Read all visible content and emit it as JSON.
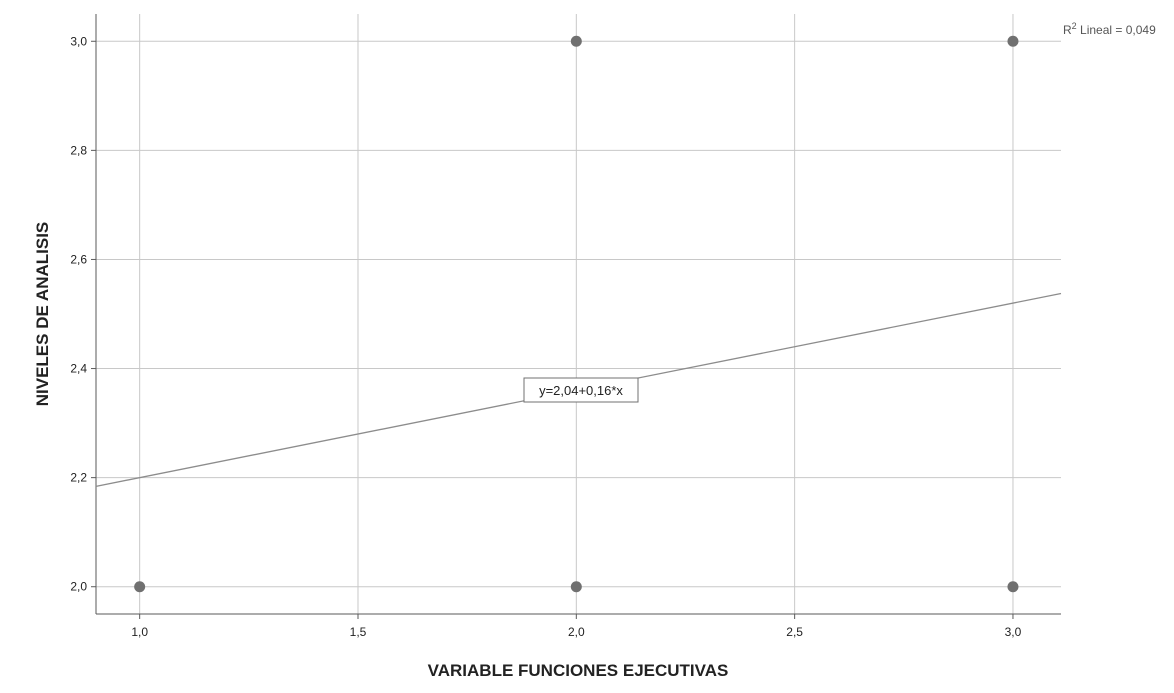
{
  "chart_data": {
    "type": "scatter",
    "title": "",
    "xlabel": "VARIABLE FUNCIONES EJECUTIVAS",
    "ylabel": "NIVELES DE ANALISIS",
    "xlim": [
      0.9,
      3.11
    ],
    "ylim": [
      1.95,
      3.05
    ],
    "x_ticks": [
      1.0,
      1.5,
      2.0,
      2.5,
      3.0
    ],
    "x_tick_labels": [
      "1,0",
      "1,5",
      "2,0",
      "2,5",
      "3,0"
    ],
    "y_ticks": [
      2.0,
      2.2,
      2.4,
      2.6,
      2.8,
      3.0
    ],
    "y_tick_labels": [
      "2,0",
      "2,2",
      "2,4",
      "2,6",
      "2,8",
      "3,0"
    ],
    "grid": true,
    "points": [
      {
        "x": 1.0,
        "y": 2.0
      },
      {
        "x": 2.0,
        "y": 2.0
      },
      {
        "x": 3.0,
        "y": 2.0
      },
      {
        "x": 2.0,
        "y": 3.0
      },
      {
        "x": 3.0,
        "y": 3.0
      }
    ],
    "fit_line": {
      "intercept": 2.04,
      "slope": 0.16
    },
    "fit_equation_label": "y=2,04+0,16*x",
    "r2_label_prefix": "R",
    "r2_label_sup": "2",
    "r2_label_suffix": " Lineal = 0,049",
    "colors": {
      "points": "#707070",
      "grid": "#c8c8c8",
      "fit": "#8c8c8c",
      "axis": "#5a5a5a",
      "text": "#222222"
    }
  }
}
